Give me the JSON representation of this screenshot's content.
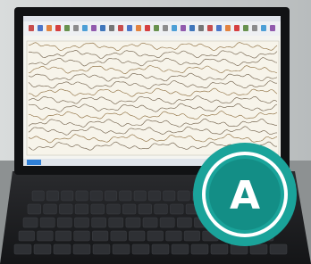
{
  "badge": {
    "label": "A"
  }
}
